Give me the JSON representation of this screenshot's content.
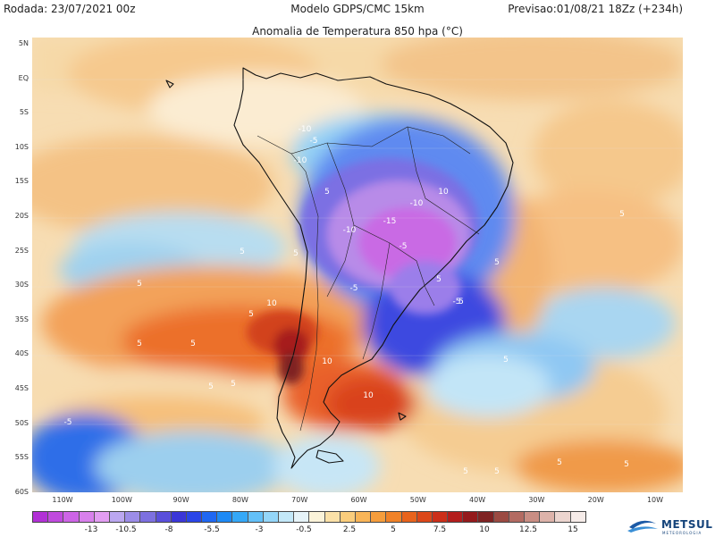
{
  "header": {
    "run": "Rodada: 23/07/2021 00z",
    "model": "Modelo GDPS/CMC 15km",
    "valid": "Previsao:01/08/21 18Zz (+234h)",
    "subtitle": "Anomalia de Temperatura 850 hpa (°C)"
  },
  "axes": {
    "lat_labels": [
      "5N",
      "EQ",
      "5S",
      "10S",
      "15S",
      "20S",
      "25S",
      "30S",
      "35S",
      "40S",
      "45S",
      "50S",
      "55S",
      "60S"
    ],
    "lon_labels": [
      "110W",
      "100W",
      "90W",
      "80W",
      "70W",
      "60W",
      "50W",
      "40W",
      "30W",
      "20W",
      "10W"
    ]
  },
  "contour_labels": [
    "5",
    "5",
    "5",
    "5",
    "5",
    "5",
    "5",
    "5",
    "5",
    "5",
    "5",
    "5",
    "5",
    "5",
    "5",
    "5",
    "5",
    "5",
    "10",
    "10",
    "10",
    "10",
    "-5",
    "-5",
    "-5",
    "-5",
    "-5",
    "-10",
    "-10",
    "-10",
    "-10",
    "-15"
  ],
  "colorbar": {
    "colors": [
      "#b230d6",
      "#c04ade",
      "#cd64e6",
      "#d880ec",
      "#e29df2",
      "#bba7f0",
      "#9c8de8",
      "#7d70e0",
      "#5a4fdb",
      "#3b36d8",
      "#2a45e8",
      "#1f67f2",
      "#1e8af5",
      "#35a8f7",
      "#63c0f8",
      "#94d6f9",
      "#c3e8f8",
      "#e6f3f8",
      "#fbf3d9",
      "#fbe1a8",
      "#fbcd7c",
      "#f9b558",
      "#f59d3c",
      "#f08228",
      "#e8631c",
      "#dc4719",
      "#cc2f1a",
      "#b31e1d",
      "#941a1c",
      "#7f2323",
      "#9b4a42",
      "#b36b62",
      "#c98e84",
      "#ddb3aa",
      "#ecd5cf",
      "#f6ece9"
    ],
    "labels": [
      "-13",
      "-10.5",
      "-8",
      "-5.5",
      "-3",
      "-0.5",
      "2.5",
      "5",
      "7.5",
      "10",
      "12.5",
      "15"
    ]
  },
  "logo": {
    "name": "METSUL",
    "tagline": "METEOROLOGIA"
  }
}
